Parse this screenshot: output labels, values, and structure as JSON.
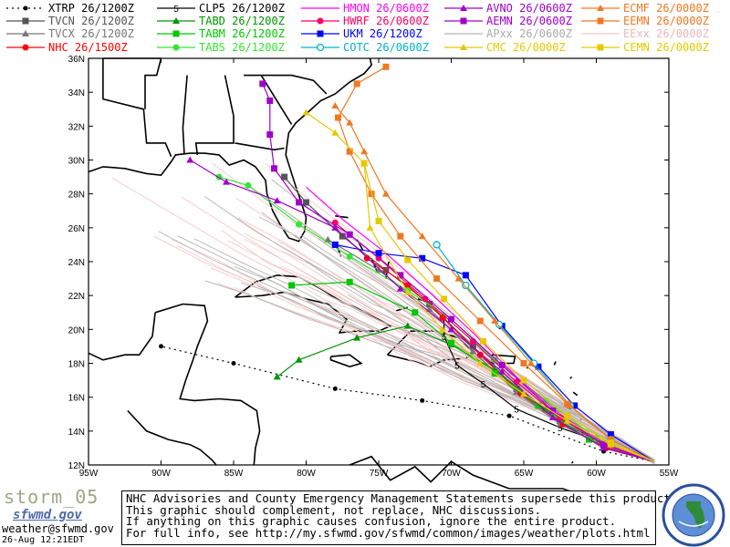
{
  "legend": [
    {
      "label": "XTRP 26/1200Z",
      "color": "#000000",
      "marker": "dot",
      "dash": true
    },
    {
      "label": "CLP5 26/1200Z",
      "color": "#000000",
      "marker": "five"
    },
    {
      "label": "HMON 26/0600Z",
      "color": "#ff00ff",
      "marker": "none"
    },
    {
      "label": "AVNO 26/0600Z",
      "color": "#a000c8",
      "marker": "triangle"
    },
    {
      "label": "ECMF 26/0000Z",
      "color": "#f07820",
      "marker": "triangle"
    },
    {
      "label": "TVCN 26/1200Z",
      "color": "#555555",
      "marker": "square"
    },
    {
      "label": "TABD 26/1200Z",
      "color": "#009600",
      "marker": "triangle"
    },
    {
      "label": "HWRF 26/0600Z",
      "color": "#ff0064",
      "marker": "circle"
    },
    {
      "label": "AEMN 26/0600Z",
      "color": "#a000c8",
      "marker": "square"
    },
    {
      "label": "EEMN 26/0000Z",
      "color": "#f07820",
      "marker": "square"
    },
    {
      "label": "TVCX 26/1200Z",
      "color": "#777777",
      "marker": "triangle"
    },
    {
      "label": "TABM 26/1200Z",
      "color": "#00c800",
      "marker": "square"
    },
    {
      "label": "UKM 26/1200Z",
      "color": "#0000ff",
      "marker": "square"
    },
    {
      "label": "APxx 26/0600Z",
      "color": "#b4b4b4",
      "marker": "none"
    },
    {
      "label": "EExx 26/0000Z",
      "color": "#f5c8c8",
      "marker": "none"
    },
    {
      "label": "NHC 26/1500Z",
      "color": "#ff0000",
      "marker": "circle"
    },
    {
      "label": "TABS 26/1200Z",
      "color": "#32e632",
      "marker": "circle"
    },
    {
      "label": "COTC 26/0600Z",
      "color": "#00b4c8",
      "marker": "ring"
    },
    {
      "label": "CMC 26/0000Z",
      "color": "#e6c800",
      "marker": "triangle"
    },
    {
      "label": "CEMN 26/0000Z",
      "color": "#e6c800",
      "marker": "square"
    }
  ],
  "axes": {
    "lat_labels": [
      "36N",
      "34N",
      "32N",
      "30N",
      "28N",
      "26N",
      "24N",
      "22N",
      "20N",
      "18N",
      "16N",
      "14N",
      "12N"
    ],
    "lon_labels": [
      "95W",
      "90W",
      "85W",
      "80W",
      "75W",
      "70W",
      "65W",
      "60W",
      "55W"
    ]
  },
  "map": {
    "lon_range": [
      -95,
      -55
    ],
    "lat_range": [
      12,
      36
    ],
    "tracks": [
      {
        "name": "XTRP",
        "color": "#000000",
        "dash": true,
        "marker": "dot",
        "points": [
          [
            -56,
            12.2
          ],
          [
            -59.5,
            12.8
          ],
          [
            -66,
            14.9
          ],
          [
            -72,
            15.8
          ],
          [
            -78,
            16.5
          ],
          [
            -85,
            18
          ],
          [
            -90,
            19
          ]
        ]
      },
      {
        "name": "CLP5",
        "color": "#000000",
        "marker": "five",
        "points": [
          [
            -56,
            12.2
          ],
          [
            -59.5,
            13.3
          ],
          [
            -62.5,
            14.2
          ],
          [
            -65.5,
            15.3
          ],
          [
            -67.8,
            16.8
          ],
          [
            -69.6,
            17.9
          ],
          [
            -70.5,
            19.6
          ],
          [
            -70.5,
            20.8
          ]
        ]
      },
      {
        "name": "TVCN",
        "color": "#555555",
        "marker": "square",
        "points": [
          [
            -56,
            12.2
          ],
          [
            -59.5,
            13.2
          ],
          [
            -62.5,
            14.6
          ],
          [
            -65.5,
            16.5
          ],
          [
            -68.5,
            19
          ],
          [
            -71.5,
            21.5
          ],
          [
            -74.5,
            23.5
          ],
          [
            -77.5,
            25.5
          ],
          [
            -80,
            27.5
          ],
          [
            -81.5,
            29
          ]
        ]
      },
      {
        "name": "TVCX",
        "color": "#777777",
        "marker": "triangle",
        "points": [
          [
            -56,
            12.2
          ],
          [
            -59.5,
            13.1
          ],
          [
            -62.5,
            14.4
          ],
          [
            -65.5,
            16.3
          ],
          [
            -68.5,
            18.7
          ],
          [
            -71.5,
            21.2
          ],
          [
            -75,
            23.5
          ],
          [
            -78.5,
            25.3
          ]
        ]
      },
      {
        "name": "NHC",
        "color": "#ff0000",
        "marker": "circle",
        "points": [
          [
            -56,
            12.2
          ],
          [
            -59.3,
            13
          ],
          [
            -62.3,
            14.4
          ],
          [
            -65.2,
            16.2
          ],
          [
            -68,
            18.5
          ],
          [
            -70.6,
            20.7
          ],
          [
            -73,
            22.6
          ],
          [
            -75.8,
            24.2
          ]
        ]
      },
      {
        "name": "TABD",
        "color": "#009600",
        "marker": "triangle",
        "points": [
          [
            -56,
            12.2
          ],
          [
            -59.5,
            13.2
          ],
          [
            -63.5,
            15.3
          ],
          [
            -67,
            17.6
          ],
          [
            -70,
            19.1
          ],
          [
            -73,
            20.2
          ],
          [
            -76.5,
            19.5
          ],
          [
            -80.5,
            18.2
          ],
          [
            -82,
            17.2
          ]
        ]
      },
      {
        "name": "TABM",
        "color": "#00c800",
        "marker": "square",
        "points": [
          [
            -56,
            12.2
          ],
          [
            -60.5,
            13.5
          ],
          [
            -64,
            15.5
          ],
          [
            -67,
            17.4
          ],
          [
            -70,
            19.2
          ],
          [
            -72.5,
            21
          ],
          [
            -77,
            22.8
          ],
          [
            -81,
            22.6
          ]
        ]
      },
      {
        "name": "TABS",
        "color": "#32e632",
        "marker": "circle",
        "points": [
          [
            -56,
            12.2
          ],
          [
            -60,
            13.6
          ],
          [
            -63.5,
            15.8
          ],
          [
            -67,
            18.2
          ],
          [
            -70,
            20.6
          ],
          [
            -73,
            22.3
          ],
          [
            -77,
            24.3
          ],
          [
            -80.5,
            26.2
          ],
          [
            -84,
            28.5
          ],
          [
            -86,
            29
          ]
        ]
      },
      {
        "name": "HMON",
        "color": "#ff00ff",
        "marker": "none",
        "points": [
          [
            -56,
            12.2
          ],
          [
            -59.5,
            13.3
          ],
          [
            -62.5,
            15
          ],
          [
            -65.5,
            17.2
          ],
          [
            -68.5,
            19.8
          ],
          [
            -71.5,
            22.2
          ],
          [
            -74.5,
            24.5
          ],
          [
            -77.5,
            26.5
          ],
          [
            -80,
            28.4
          ]
        ]
      },
      {
        "name": "HWRF",
        "color": "#ff0064",
        "marker": "circle",
        "points": [
          [
            -56,
            12.2
          ],
          [
            -59.5,
            13.2
          ],
          [
            -62.5,
            14.8
          ],
          [
            -65.5,
            16.9
          ],
          [
            -68.5,
            19.3
          ],
          [
            -71.8,
            21.8
          ],
          [
            -75,
            24.2
          ],
          [
            -78,
            26.3
          ]
        ]
      },
      {
        "name": "UKM",
        "color": "#0000ff",
        "marker": "square",
        "points": [
          [
            -56,
            12.2
          ],
          [
            -59,
            13.8
          ],
          [
            -61.5,
            15.5
          ],
          [
            -64,
            17.8
          ],
          [
            -66.5,
            20.2
          ],
          [
            -69,
            23.2
          ],
          [
            -72,
            24.2
          ],
          [
            -75,
            24.5
          ],
          [
            -78,
            25
          ]
        ]
      },
      {
        "name": "AVNO",
        "color": "#a000c8",
        "marker": "triangle",
        "points": [
          [
            -56,
            12.2
          ],
          [
            -59.5,
            13
          ],
          [
            -63,
            14.8
          ],
          [
            -66.5,
            17.5
          ],
          [
            -70,
            20
          ],
          [
            -73.5,
            22.4
          ],
          [
            -78,
            26
          ],
          [
            -82,
            27.6
          ],
          [
            -85.5,
            28.7
          ],
          [
            -88,
            30
          ]
        ]
      },
      {
        "name": "AEMN",
        "color": "#a000c8",
        "marker": "square",
        "points": [
          [
            -56,
            12.2
          ],
          [
            -59.5,
            13.2
          ],
          [
            -63,
            15.2
          ],
          [
            -66.5,
            17.9
          ],
          [
            -70,
            20.6
          ],
          [
            -73.5,
            23.2
          ],
          [
            -77,
            25.6
          ],
          [
            -80.5,
            27.5
          ],
          [
            -82.2,
            29.5
          ],
          [
            -82.5,
            31.5
          ],
          [
            -82.5,
            33.5
          ],
          [
            -83,
            34.5
          ]
        ]
      },
      {
        "name": "COTC",
        "color": "#00b4c8",
        "marker": "ring",
        "points": [
          [
            -56,
            12.2
          ],
          [
            -59,
            13.5
          ],
          [
            -61.8,
            15.5
          ],
          [
            -64.3,
            18
          ],
          [
            -66.7,
            20.3
          ],
          [
            -69,
            22.6
          ],
          [
            -71,
            25
          ]
        ]
      },
      {
        "name": "ECMF",
        "color": "#f07820",
        "marker": "triangle",
        "points": [
          [
            -56,
            12.2
          ],
          [
            -59,
            13.5
          ],
          [
            -61.8,
            15.5
          ],
          [
            -64.5,
            18
          ],
          [
            -67,
            20.5
          ],
          [
            -69.5,
            23
          ],
          [
            -72,
            25.5
          ],
          [
            -74.5,
            28
          ],
          [
            -76,
            30.5
          ],
          [
            -77,
            32.2
          ],
          [
            -78,
            33.2
          ]
        ]
      },
      {
        "name": "EEMN",
        "color": "#f07820",
        "marker": "square",
        "points": [
          [
            -56,
            12.2
          ],
          [
            -59,
            13.5
          ],
          [
            -62,
            15.6
          ],
          [
            -65,
            18
          ],
          [
            -68,
            20.5
          ],
          [
            -71,
            23
          ],
          [
            -73.5,
            25.5
          ],
          [
            -75.5,
            28
          ],
          [
            -77,
            30.5
          ],
          [
            -77.8,
            32.5
          ],
          [
            -76.5,
            34.5
          ],
          [
            -74.5,
            35.5
          ]
        ]
      },
      {
        "name": "CMC",
        "color": "#e6c800",
        "marker": "triangle",
        "points": [
          [
            -56,
            12.2
          ],
          [
            -59,
            13.2
          ],
          [
            -62,
            14.6
          ],
          [
            -65,
            16.2
          ],
          [
            -68,
            18
          ],
          [
            -70.6,
            20
          ],
          [
            -73,
            22.2
          ],
          [
            -75.6,
            26
          ],
          [
            -76,
            29.8
          ],
          [
            -78,
            31.6
          ],
          [
            -80,
            32.8
          ]
        ]
      },
      {
        "name": "CEMN",
        "color": "#e6c800",
        "marker": "square",
        "points": [
          [
            -56,
            12.2
          ],
          [
            -59,
            13.3
          ],
          [
            -62,
            14.9
          ],
          [
            -65,
            17
          ],
          [
            -67.8,
            19.3
          ],
          [
            -70.5,
            21.8
          ],
          [
            -73,
            24.1
          ],
          [
            -75,
            26.4
          ],
          [
            -76,
            29.8
          ]
        ]
      }
    ],
    "ensemble_grey": "#b4b4b4",
    "ensemble_pink": "#f5c8c8"
  },
  "footer": {
    "storm_name": "storm_05",
    "brand": "sfwmd.gov",
    "email": "weather@sfwmd.gov",
    "timestamp": "26-Aug 12:21EDT",
    "disclaimer": [
      "NHC Advisories and County Emergency Management Statements supersede this product.",
      "This graphic should complement, not replace, NHC discussions.",
      "If anything on this graphic causes confusion, ignore the entire product.",
      "For full info, see  http://my.sfwmd.gov/sfwmd/common/images/weather/plots.html"
    ],
    "logo_text": "SOUTH FLORIDA WATER MANAGEMENT DISTRICT"
  }
}
